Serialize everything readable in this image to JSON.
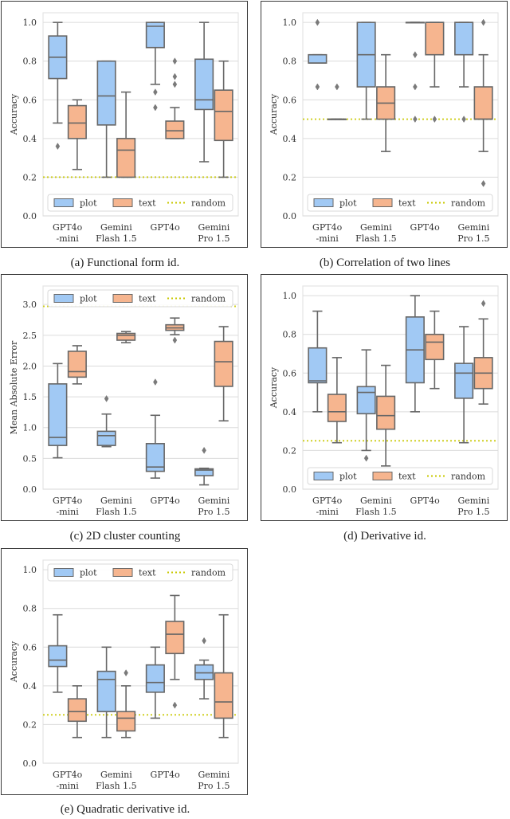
{
  "figure": {
    "legend_labels": {
      "plot": "plot",
      "text": "text",
      "random": "random"
    },
    "colors": {
      "plot": "#a1c9f4",
      "text": "#f6b58f",
      "random": "#c8c800",
      "box_edge": "#676767",
      "grid": "#dcdcdc"
    }
  },
  "chart_data": [
    {
      "id": "a",
      "type": "box",
      "caption": "(a) Functional form id.",
      "ylabel": "Accuracy",
      "ylim": [
        0,
        1.05
      ],
      "yticks": [
        "0.0",
        "0.2",
        "0.4",
        "0.6",
        "0.8",
        "1.0"
      ],
      "ytick_values": [
        0,
        0.2,
        0.4,
        0.6,
        0.8,
        1.0
      ],
      "categories": [
        [
          "GPT4o",
          "-mini"
        ],
        [
          "Gemini",
          "Flash 1.5"
        ],
        [
          "GPT4o"
        ],
        [
          "Gemini",
          "Pro 1.5"
        ]
      ],
      "random_baseline": 0.2,
      "legend": "bottom",
      "series": [
        {
          "name": "plot",
          "boxes": [
            {
              "whislo": 0.48,
              "q1": 0.71,
              "med": 0.82,
              "q3": 0.93,
              "whishi": 1.0,
              "fliers": [
                0.36
              ]
            },
            {
              "whislo": 0.2,
              "q1": 0.47,
              "med": 0.62,
              "q3": 0.8,
              "whishi": 0.8,
              "fliers": []
            },
            {
              "whislo": 0.68,
              "q1": 0.87,
              "med": 0.98,
              "q3": 1.0,
              "whishi": 1.0,
              "fliers": [
                0.64,
                0.56
              ]
            },
            {
              "whislo": 0.28,
              "q1": 0.55,
              "med": 0.6,
              "q3": 0.81,
              "whishi": 1.0,
              "fliers": []
            }
          ]
        },
        {
          "name": "text",
          "boxes": [
            {
              "whislo": 0.24,
              "q1": 0.4,
              "med": 0.48,
              "q3": 0.57,
              "whishi": 0.6,
              "fliers": []
            },
            {
              "whislo": 0.2,
              "q1": 0.2,
              "med": 0.34,
              "q3": 0.4,
              "whishi": 0.64,
              "fliers": []
            },
            {
              "whislo": 0.4,
              "q1": 0.4,
              "med": 0.44,
              "q3": 0.49,
              "whishi": 0.56,
              "fliers": [
                0.8,
                0.72,
                0.68
              ]
            },
            {
              "whislo": 0.2,
              "q1": 0.39,
              "med": 0.54,
              "q3": 0.65,
              "whishi": 0.8,
              "fliers": []
            }
          ]
        }
      ]
    },
    {
      "id": "b",
      "type": "box",
      "caption": "(b) Correlation of two lines",
      "ylabel": "Accuracy",
      "ylim": [
        0,
        1.05
      ],
      "yticks": [
        "0.0",
        "0.2",
        "0.4",
        "0.6",
        "0.8",
        "1.0"
      ],
      "ytick_values": [
        0,
        0.2,
        0.4,
        0.6,
        0.8,
        1.0
      ],
      "categories": [
        [
          "GPT4o",
          "-mini"
        ],
        [
          "Gemini",
          "Flash 1.5"
        ],
        [
          "GPT4o"
        ],
        [
          "Gemini",
          "Pro 1.5"
        ]
      ],
      "random_baseline": 0.5,
      "legend": "bottom",
      "series": [
        {
          "name": "plot",
          "boxes": [
            {
              "whislo": 0.79,
              "q1": 0.79,
              "med": 0.79,
              "q3": 0.833,
              "whishi": 0.833,
              "fliers": [
                1.0,
                0.667
              ]
            },
            {
              "whislo": 0.5,
              "q1": 0.667,
              "med": 0.833,
              "q3": 1.0,
              "whishi": 1.0,
              "fliers": []
            },
            {
              "whislo": 1.0,
              "q1": 1.0,
              "med": 1.0,
              "q3": 1.0,
              "whishi": 1.0,
              "fliers": [
                0.833,
                0.667,
                0.5
              ]
            },
            {
              "whislo": 0.667,
              "q1": 0.833,
              "med": 1.0,
              "q3": 1.0,
              "whishi": 1.0,
              "fliers": [
                0.5
              ]
            }
          ]
        },
        {
          "name": "text",
          "boxes": [
            {
              "whislo": 0.5,
              "q1": 0.5,
              "med": 0.5,
              "q3": 0.5,
              "whishi": 0.5,
              "fliers": [
                0.667
              ]
            },
            {
              "whislo": 0.333,
              "q1": 0.5,
              "med": 0.583,
              "q3": 0.667,
              "whishi": 0.833,
              "fliers": []
            },
            {
              "whislo": 0.667,
              "q1": 0.833,
              "med": 1.0,
              "q3": 1.0,
              "whishi": 1.0,
              "fliers": [
                0.5
              ]
            },
            {
              "whislo": 0.333,
              "q1": 0.5,
              "med": 0.5,
              "q3": 0.667,
              "whishi": 0.833,
              "fliers": [
                1.0,
                0.167
              ]
            }
          ]
        }
      ]
    },
    {
      "id": "c",
      "type": "box",
      "caption": "(c) 2D cluster counting",
      "ylabel": "Mean Absolute Error",
      "ylim": [
        0,
        3.3
      ],
      "yticks": [
        "0.0",
        "0.5",
        "1.0",
        "1.5",
        "2.0",
        "2.5",
        "3.0"
      ],
      "ytick_values": [
        0,
        0.5,
        1.0,
        1.5,
        2.0,
        2.5,
        3.0
      ],
      "categories": [
        [
          "GPT4o",
          "-mini"
        ],
        [
          "Gemini",
          "Flash 1.5"
        ],
        [
          "GPT4o"
        ],
        [
          "Gemini",
          "Pro 1.5"
        ]
      ],
      "random_baseline": 2.97,
      "legend": "top-right",
      "series": [
        {
          "name": "plot",
          "boxes": [
            {
              "whislo": 0.51,
              "q1": 0.71,
              "med": 0.84,
              "q3": 1.71,
              "whishi": 2.04,
              "fliers": []
            },
            {
              "whislo": 0.69,
              "q1": 0.71,
              "med": 0.87,
              "q3": 0.94,
              "whishi": 1.22,
              "fliers": [
                1.47
              ]
            },
            {
              "whislo": 0.18,
              "q1": 0.29,
              "med": 0.36,
              "q3": 0.74,
              "whishi": 1.2,
              "fliers": [
                1.74
              ]
            },
            {
              "whislo": 0.07,
              "q1": 0.22,
              "med": 0.31,
              "q3": 0.33,
              "whishi": 0.34,
              "fliers": [
                0.63
              ]
            }
          ]
        },
        {
          "name": "text",
          "boxes": [
            {
              "whislo": 1.71,
              "q1": 1.82,
              "med": 1.91,
              "q3": 2.24,
              "whishi": 2.33,
              "fliers": []
            },
            {
              "whislo": 2.38,
              "q1": 2.42,
              "med": 2.5,
              "q3": 2.53,
              "whishi": 2.56,
              "fliers": []
            },
            {
              "whislo": 2.51,
              "q1": 2.58,
              "med": 2.62,
              "q3": 2.67,
              "whishi": 2.78,
              "fliers": [
                2.42
              ]
            },
            {
              "whislo": 1.11,
              "q1": 1.67,
              "med": 2.07,
              "q3": 2.4,
              "whishi": 2.64,
              "fliers": []
            }
          ]
        }
      ]
    },
    {
      "id": "d",
      "type": "box",
      "caption": "(d) Derivative id.",
      "ylabel": "Accuracy",
      "ylim": [
        0,
        1.05
      ],
      "yticks": [
        "0.0",
        "0.2",
        "0.4",
        "0.6",
        "0.8",
        "1.0"
      ],
      "ytick_values": [
        0,
        0.2,
        0.4,
        0.6,
        0.8,
        1.0
      ],
      "categories": [
        [
          "GPT4o",
          "-mini"
        ],
        [
          "Gemini",
          "Flash 1.5"
        ],
        [
          "GPT4o"
        ],
        [
          "Gemini",
          "Pro 1.5"
        ]
      ],
      "random_baseline": 0.25,
      "legend": "bottom",
      "series": [
        {
          "name": "plot",
          "boxes": [
            {
              "whislo": 0.4,
              "q1": 0.55,
              "med": 0.56,
              "q3": 0.73,
              "whishi": 0.92,
              "fliers": []
            },
            {
              "whislo": 0.2,
              "q1": 0.39,
              "med": 0.5,
              "q3": 0.53,
              "whishi": 0.72,
              "fliers": [
                0.16
              ]
            },
            {
              "whislo": 0.4,
              "q1": 0.55,
              "med": 0.72,
              "q3": 0.89,
              "whishi": 1.0,
              "fliers": []
            },
            {
              "whislo": 0.24,
              "q1": 0.47,
              "med": 0.6,
              "q3": 0.65,
              "whishi": 0.84,
              "fliers": []
            }
          ]
        },
        {
          "name": "text",
          "boxes": [
            {
              "whislo": 0.24,
              "q1": 0.35,
              "med": 0.4,
              "q3": 0.49,
              "whishi": 0.68,
              "fliers": []
            },
            {
              "whislo": 0.12,
              "q1": 0.31,
              "med": 0.38,
              "q3": 0.48,
              "whishi": 0.64,
              "fliers": []
            },
            {
              "whislo": 0.52,
              "q1": 0.67,
              "med": 0.76,
              "q3": 0.8,
              "whishi": 0.92,
              "fliers": []
            },
            {
              "whislo": 0.44,
              "q1": 0.52,
              "med": 0.6,
              "q3": 0.68,
              "whishi": 0.88,
              "fliers": [
                0.96
              ]
            }
          ]
        }
      ]
    },
    {
      "id": "e",
      "type": "box",
      "caption": "(e) Quadratic derivative id.",
      "ylabel": "Accuracy",
      "ylim": [
        0,
        1.05
      ],
      "yticks": [
        "0.0",
        "0.2",
        "0.4",
        "0.6",
        "0.8",
        "1.0"
      ],
      "ytick_values": [
        0,
        0.2,
        0.4,
        0.6,
        0.8,
        1.0
      ],
      "categories": [
        [
          "GPT4o",
          "-mini"
        ],
        [
          "Gemini",
          "Flash 1.5"
        ],
        [
          "GPT4o"
        ],
        [
          "Gemini",
          "Pro 1.5"
        ]
      ],
      "random_baseline": 0.25,
      "legend": "top-right",
      "series": [
        {
          "name": "plot",
          "boxes": [
            {
              "whislo": 0.367,
              "q1": 0.5,
              "med": 0.533,
              "q3": 0.607,
              "whishi": 0.767,
              "fliers": []
            },
            {
              "whislo": 0.133,
              "q1": 0.267,
              "med": 0.433,
              "q3": 0.475,
              "whishi": 0.6,
              "fliers": []
            },
            {
              "whislo": 0.233,
              "q1": 0.367,
              "med": 0.417,
              "q3": 0.508,
              "whishi": 0.6,
              "fliers": []
            },
            {
              "whislo": 0.333,
              "q1": 0.433,
              "med": 0.467,
              "q3": 0.508,
              "whishi": 0.533,
              "fliers": [
                0.633
              ]
            }
          ]
        },
        {
          "name": "text",
          "boxes": [
            {
              "whislo": 0.133,
              "q1": 0.217,
              "med": 0.267,
              "q3": 0.333,
              "whishi": 0.4,
              "fliers": []
            },
            {
              "whislo": 0.133,
              "q1": 0.167,
              "med": 0.233,
              "q3": 0.267,
              "whishi": 0.4,
              "fliers": [
                0.467
              ]
            },
            {
              "whislo": 0.433,
              "q1": 0.567,
              "med": 0.667,
              "q3": 0.733,
              "whishi": 0.867,
              "fliers": [
                0.3
              ]
            },
            {
              "whislo": 0.133,
              "q1": 0.233,
              "med": 0.317,
              "q3": 0.467,
              "whishi": 0.767,
              "fliers": []
            }
          ]
        }
      ]
    }
  ]
}
